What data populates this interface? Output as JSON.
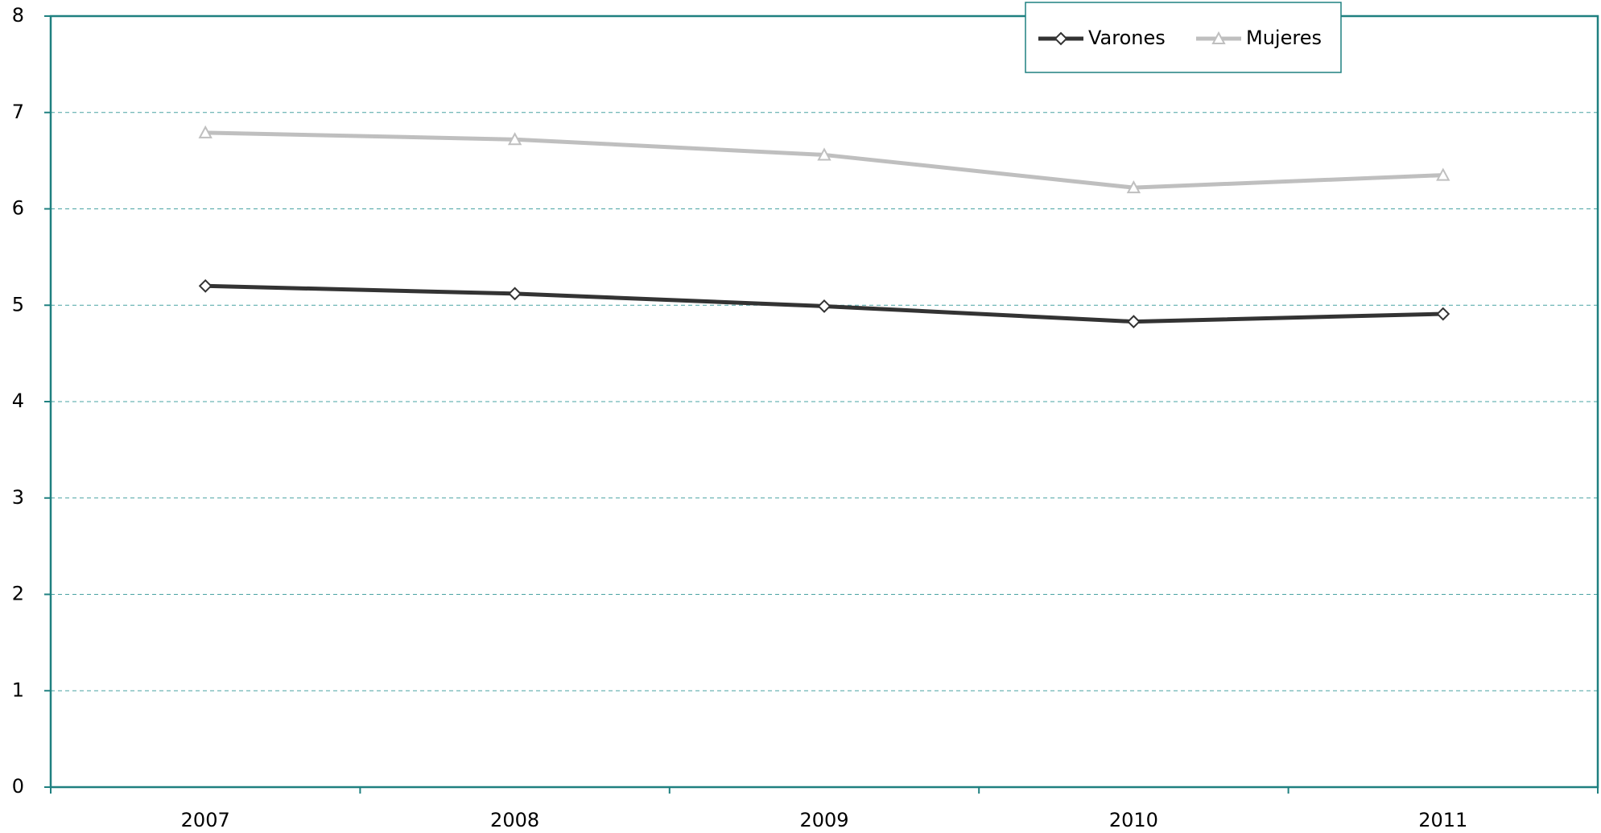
{
  "chart_data": {
    "type": "line",
    "categories": [
      "2007",
      "2008",
      "2009",
      "2010",
      "2011"
    ],
    "series": [
      {
        "name": "Varones",
        "color": "#333333",
        "marker": "diamond",
        "values": [
          5.2,
          5.12,
          4.99,
          4.83,
          4.91
        ]
      },
      {
        "name": "Mujeres",
        "color": "#bfbfbf",
        "marker": "triangle",
        "values": [
          6.79,
          6.72,
          6.56,
          6.22,
          6.35
        ]
      }
    ],
    "ylim": [
      0,
      8
    ],
    "yticks": [
      0,
      1,
      2,
      3,
      4,
      5,
      6,
      7,
      8
    ],
    "grid": true,
    "legend": "top"
  }
}
